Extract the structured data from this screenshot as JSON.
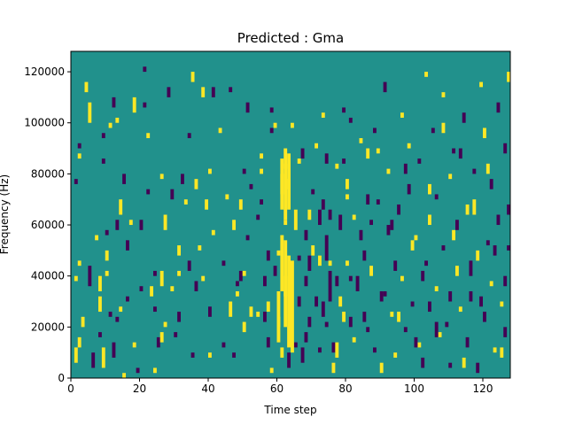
{
  "chart_data": {
    "type": "heatmap",
    "title": "Predicted : Gma",
    "xlabel": "Time step",
    "ylabel": "Frequency (Hz)",
    "xlim": [
      0,
      128
    ],
    "ylim": [
      0,
      128000
    ],
    "x_ticks": [
      0,
      20,
      40,
      60,
      80,
      100,
      120
    ],
    "y_ticks": [
      0,
      20000,
      40000,
      60000,
      80000,
      100000,
      120000
    ],
    "grid": false,
    "legend": "none",
    "colormap": "viridis",
    "values_scale": "ternary: -1 (dark purple), 0 (teal background), 1 (yellow)",
    "colors": {
      "low": "#440154",
      "mid": "#21918c",
      "high": "#fde725"
    },
    "background_value": 0,
    "bin_width_time": 1,
    "bin_height_hz": 2000,
    "cells": [
      [
        1,
        6000,
        12000,
        1
      ],
      [
        2,
        12000,
        16000,
        1
      ],
      [
        3,
        20000,
        24000,
        1
      ],
      [
        1,
        38000,
        40000,
        1
      ],
      [
        2,
        44000,
        46000,
        1
      ],
      [
        2,
        86000,
        88000,
        1
      ],
      [
        1,
        76000,
        78000,
        -1
      ],
      [
        2,
        90000,
        92000,
        -1
      ],
      [
        4,
        112000,
        116000,
        1
      ],
      [
        5,
        100000,
        108000,
        1
      ],
      [
        5,
        36000,
        44000,
        -1
      ],
      [
        6,
        4000,
        10000,
        -1
      ],
      [
        7,
        54000,
        56000,
        1
      ],
      [
        8,
        16000,
        18000,
        -1
      ],
      [
        8,
        26000,
        32000,
        1
      ],
      [
        8,
        34000,
        40000,
        1
      ],
      [
        9,
        94000,
        96000,
        -1
      ],
      [
        9,
        4000,
        12000,
        1
      ],
      [
        9,
        84000,
        86000,
        -1
      ],
      [
        10,
        46000,
        50000,
        1
      ],
      [
        10,
        56000,
        58000,
        -1
      ],
      [
        10,
        40000,
        42000,
        1
      ],
      [
        11,
        98000,
        100000,
        1
      ],
      [
        11,
        24000,
        26000,
        -1
      ],
      [
        12,
        8000,
        14000,
        -1
      ],
      [
        12,
        106000,
        110000,
        -1
      ],
      [
        13,
        58000,
        62000,
        -1
      ],
      [
        13,
        100000,
        102000,
        1
      ],
      [
        13,
        22000,
        24000,
        -1
      ],
      [
        14,
        64000,
        70000,
        1
      ],
      [
        14,
        26000,
        28000,
        1
      ],
      [
        15,
        0,
        2000,
        1
      ],
      [
        15,
        76000,
        80000,
        -1
      ],
      [
        16,
        30000,
        32000,
        -1
      ],
      [
        16,
        50000,
        54000,
        -1
      ],
      [
        17,
        60000,
        62000,
        1
      ],
      [
        18,
        12000,
        14000,
        1
      ],
      [
        18,
        104000,
        110000,
        1
      ],
      [
        19,
        2000,
        4000,
        -1
      ],
      [
        20,
        58000,
        62000,
        -1
      ],
      [
        20,
        34000,
        36000,
        -1
      ],
      [
        21,
        106000,
        108000,
        -1
      ],
      [
        21,
        120000,
        122000,
        -1
      ],
      [
        22,
        72000,
        74000,
        -1
      ],
      [
        22,
        94000,
        96000,
        1
      ],
      [
        23,
        32000,
        36000,
        1
      ],
      [
        24,
        2000,
        4000,
        1
      ],
      [
        24,
        26000,
        28000,
        -1
      ],
      [
        24,
        40000,
        42000,
        -1
      ],
      [
        25,
        12000,
        16000,
        -1
      ],
      [
        26,
        36000,
        42000,
        1
      ],
      [
        26,
        14000,
        18000,
        1
      ],
      [
        26,
        78000,
        80000,
        1
      ],
      [
        27,
        58000,
        64000,
        1
      ],
      [
        27,
        20000,
        22000,
        1
      ],
      [
        28,
        110000,
        114000,
        -1
      ],
      [
        29,
        70000,
        74000,
        -1
      ],
      [
        29,
        34000,
        36000,
        1
      ],
      [
        30,
        16000,
        18000,
        -1
      ],
      [
        31,
        22000,
        26000,
        -1
      ],
      [
        31,
        40000,
        42000,
        1
      ],
      [
        31,
        48000,
        52000,
        1
      ],
      [
        32,
        76000,
        80000,
        -1
      ],
      [
        33,
        68000,
        70000,
        1
      ],
      [
        34,
        42000,
        46000,
        -1
      ],
      [
        34,
        94000,
        96000,
        -1
      ],
      [
        35,
        8000,
        10000,
        -1
      ],
      [
        35,
        116000,
        120000,
        1
      ],
      [
        36,
        74000,
        78000,
        1
      ],
      [
        36,
        34000,
        38000,
        -1
      ],
      [
        37,
        50000,
        52000,
        1
      ],
      [
        38,
        110000,
        114000,
        1
      ],
      [
        38,
        38000,
        40000,
        1
      ],
      [
        39,
        66000,
        70000,
        1
      ],
      [
        40,
        8000,
        10000,
        1
      ],
      [
        40,
        24000,
        28000,
        -1
      ],
      [
        40,
        80000,
        82000,
        1
      ],
      [
        41,
        56000,
        58000,
        1
      ],
      [
        41,
        110000,
        114000,
        -1
      ],
      [
        43,
        96000,
        98000,
        1
      ],
      [
        44,
        12000,
        14000,
        -1
      ],
      [
        44,
        44000,
        46000,
        -1
      ],
      [
        45,
        70000,
        72000,
        1
      ],
      [
        46,
        24000,
        30000,
        1
      ],
      [
        46,
        112000,
        114000,
        -1
      ],
      [
        47,
        58000,
        62000,
        1
      ],
      [
        47,
        8000,
        10000,
        -1
      ],
      [
        48,
        32000,
        34000,
        1
      ],
      [
        48,
        36000,
        38000,
        -1
      ],
      [
        49,
        38000,
        42000,
        -1
      ],
      [
        49,
        66000,
        70000,
        1
      ],
      [
        50,
        40000,
        42000,
        1
      ],
      [
        50,
        18000,
        22000,
        1
      ],
      [
        50,
        80000,
        82000,
        -1
      ],
      [
        51,
        104000,
        108000,
        -1
      ],
      [
        51,
        54000,
        56000,
        -1
      ],
      [
        52,
        74000,
        76000,
        -1
      ],
      [
        52,
        24000,
        28000,
        1
      ],
      [
        54,
        24000,
        26000,
        1
      ],
      [
        54,
        62000,
        64000,
        -1
      ],
      [
        55,
        86000,
        88000,
        1
      ],
      [
        55,
        68000,
        70000,
        -1
      ],
      [
        56,
        36000,
        40000,
        -1
      ],
      [
        57,
        12000,
        16000,
        -1
      ],
      [
        57,
        26000,
        30000,
        1
      ],
      [
        58,
        104000,
        106000,
        -1
      ],
      [
        58,
        2000,
        4000,
        1
      ],
      [
        59,
        40000,
        44000,
        -1
      ],
      [
        59,
        98000,
        100000,
        1
      ],
      [
        60,
        20000,
        24000,
        1
      ],
      [
        60,
        48000,
        50000,
        1
      ],
      [
        61,
        72000,
        80000,
        1
      ],
      [
        61,
        8000,
        12000,
        1
      ],
      [
        62,
        82000,
        84000,
        1
      ],
      [
        62,
        60000,
        62000,
        1
      ],
      [
        62,
        32000,
        40000,
        1
      ],
      [
        63,
        74000,
        78000,
        1
      ],
      [
        63,
        4000,
        10000,
        -1
      ],
      [
        64,
        98000,
        100000,
        1
      ],
      [
        65,
        58000,
        66000,
        1
      ],
      [
        65,
        12000,
        14000,
        -1
      ],
      [
        66,
        84000,
        86000,
        1
      ],
      [
        66,
        46000,
        48000,
        -1
      ],
      [
        67,
        6000,
        12000,
        -1
      ],
      [
        67,
        86000,
        90000,
        -1
      ],
      [
        68,
        14000,
        18000,
        -1
      ],
      [
        68,
        54000,
        58000,
        -1
      ],
      [
        69,
        42000,
        48000,
        -1
      ],
      [
        69,
        62000,
        66000,
        1
      ],
      [
        70,
        72000,
        74000,
        -1
      ],
      [
        71,
        28000,
        32000,
        -1
      ],
      [
        71,
        90000,
        92000,
        1
      ],
      [
        72,
        44000,
        48000,
        1
      ],
      [
        72,
        10000,
        12000,
        -1
      ],
      [
        73,
        102000,
        104000,
        1
      ],
      [
        73,
        66000,
        70000,
        -1
      ],
      [
        74,
        84000,
        88000,
        -1
      ],
      [
        74,
        20000,
        22000,
        -1
      ],
      [
        75,
        44000,
        46000,
        1
      ],
      [
        75,
        62000,
        66000,
        -1
      ],
      [
        76,
        10000,
        14000,
        -1
      ],
      [
        77,
        36000,
        40000,
        -1
      ],
      [
        77,
        82000,
        84000,
        1
      ],
      [
        78,
        28000,
        32000,
        1
      ],
      [
        78,
        58000,
        64000,
        -1
      ],
      [
        79,
        22000,
        26000,
        1
      ],
      [
        79,
        104000,
        106000,
        -1
      ],
      [
        80,
        44000,
        46000,
        1
      ],
      [
        80,
        70000,
        72000,
        1
      ],
      [
        81,
        20000,
        24000,
        -1
      ],
      [
        81,
        38000,
        40000,
        -1
      ],
      [
        82,
        62000,
        64000,
        1
      ],
      [
        82,
        14000,
        16000,
        1
      ],
      [
        84,
        92000,
        94000,
        1
      ],
      [
        84,
        54000,
        58000,
        -1
      ],
      [
        85,
        22000,
        26000,
        -1
      ],
      [
        86,
        86000,
        90000,
        1
      ],
      [
        86,
        18000,
        20000,
        -1
      ],
      [
        87,
        40000,
        44000,
        1
      ],
      [
        87,
        60000,
        62000,
        -1
      ],
      [
        88,
        10000,
        12000,
        -1
      ],
      [
        88,
        96000,
        98000,
        -1
      ],
      [
        89,
        68000,
        70000,
        -1
      ],
      [
        90,
        2000,
        6000,
        1
      ],
      [
        91,
        32000,
        34000,
        -1
      ],
      [
        91,
        112000,
        116000,
        -1
      ],
      [
        92,
        56000,
        60000,
        -1
      ],
      [
        92,
        80000,
        82000,
        1
      ],
      [
        93,
        24000,
        26000,
        1
      ],
      [
        94,
        42000,
        46000,
        -1
      ],
      [
        94,
        8000,
        10000,
        1
      ],
      [
        95,
        64000,
        68000,
        -1
      ],
      [
        96,
        38000,
        40000,
        1
      ],
      [
        96,
        102000,
        104000,
        1
      ],
      [
        97,
        18000,
        20000,
        -1
      ],
      [
        98,
        72000,
        76000,
        -1
      ],
      [
        98,
        90000,
        92000,
        1
      ],
      [
        99,
        28000,
        30000,
        -1
      ],
      [
        100,
        54000,
        56000,
        1
      ],
      [
        101,
        84000,
        86000,
        -1
      ],
      [
        101,
        12000,
        14000,
        1
      ],
      [
        102,
        4000,
        8000,
        -1
      ],
      [
        103,
        44000,
        46000,
        -1
      ],
      [
        103,
        118000,
        120000,
        1
      ],
      [
        104,
        26000,
        30000,
        -1
      ],
      [
        104,
        60000,
        64000,
        1
      ],
      [
        105,
        96000,
        98000,
        -1
      ],
      [
        106,
        34000,
        36000,
        1
      ],
      [
        106,
        70000,
        72000,
        -1
      ],
      [
        107,
        16000,
        18000,
        1
      ],
      [
        108,
        50000,
        52000,
        -1
      ],
      [
        108,
        110000,
        112000,
        1
      ],
      [
        109,
        20000,
        22000,
        -1
      ],
      [
        110,
        78000,
        80000,
        1
      ],
      [
        110,
        4000,
        6000,
        -1
      ],
      [
        111,
        88000,
        90000,
        -1
      ],
      [
        112,
        40000,
        44000,
        1
      ],
      [
        112,
        58000,
        62000,
        -1
      ],
      [
        113,
        26000,
        28000,
        1
      ],
      [
        114,
        100000,
        104000,
        -1
      ],
      [
        115,
        12000,
        16000,
        -1
      ],
      [
        115,
        64000,
        68000,
        1
      ],
      [
        116,
        30000,
        34000,
        -1
      ],
      [
        117,
        80000,
        82000,
        -1
      ],
      [
        118,
        46000,
        50000,
        1
      ],
      [
        118,
        2000,
        6000,
        -1
      ],
      [
        119,
        114000,
        116000,
        1
      ],
      [
        120,
        22000,
        26000,
        -1
      ],
      [
        120,
        94000,
        98000,
        1
      ],
      [
        121,
        52000,
        54000,
        -1
      ],
      [
        122,
        36000,
        38000,
        1
      ],
      [
        122,
        74000,
        78000,
        -1
      ],
      [
        123,
        10000,
        12000,
        1
      ],
      [
        124,
        60000,
        64000,
        -1
      ],
      [
        124,
        104000,
        108000,
        -1
      ],
      [
        125,
        28000,
        30000,
        1
      ],
      [
        126,
        88000,
        92000,
        -1
      ],
      [
        126,
        16000,
        20000,
        -1
      ],
      [
        127,
        50000,
        52000,
        -1
      ],
      [
        127,
        116000,
        120000,
        1
      ],
      [
        127,
        64000,
        68000,
        -1
      ],
      [
        60,
        14000,
        34000,
        1
      ],
      [
        61,
        34000,
        56000,
        1
      ],
      [
        62,
        20000,
        54000,
        1
      ],
      [
        63,
        12000,
        48000,
        1
      ],
      [
        64,
        10000,
        46000,
        1
      ],
      [
        62,
        62000,
        90000,
        1
      ],
      [
        63,
        66000,
        88000,
        1
      ],
      [
        61,
        66000,
        86000,
        1
      ],
      [
        55,
        80000,
        82000,
        1
      ],
      [
        56,
        22000,
        26000,
        -1
      ],
      [
        57,
        46000,
        50000,
        -1
      ],
      [
        58,
        96000,
        98000,
        -1
      ],
      [
        66,
        28000,
        32000,
        -1
      ],
      [
        68,
        36000,
        40000,
        -1
      ],
      [
        72,
        60000,
        66000,
        -1
      ],
      [
        73,
        24000,
        30000,
        -1
      ],
      [
        74,
        46000,
        56000,
        -1
      ],
      [
        75,
        30000,
        42000,
        -1
      ],
      [
        70,
        48000,
        52000,
        1
      ],
      [
        69,
        20000,
        24000,
        -1
      ],
      [
        76,
        2000,
        6000,
        1
      ],
      [
        77,
        8000,
        14000,
        1
      ],
      [
        79,
        84000,
        86000,
        -1
      ],
      [
        80,
        74000,
        78000,
        1
      ],
      [
        81,
        100000,
        102000,
        -1
      ],
      [
        83,
        34000,
        40000,
        -1
      ],
      [
        85,
        46000,
        50000,
        -1
      ],
      [
        86,
        68000,
        72000,
        -1
      ],
      [
        89,
        88000,
        90000,
        1
      ],
      [
        90,
        30000,
        34000,
        -1
      ],
      [
        93,
        58000,
        62000,
        -1
      ],
      [
        95,
        22000,
        26000,
        1
      ],
      [
        97,
        80000,
        84000,
        -1
      ],
      [
        99,
        50000,
        54000,
        1
      ],
      [
        100,
        12000,
        16000,
        -1
      ],
      [
        102,
        38000,
        42000,
        -1
      ],
      [
        104,
        72000,
        76000,
        1
      ],
      [
        106,
        16000,
        22000,
        -1
      ],
      [
        108,
        96000,
        100000,
        1
      ],
      [
        110,
        30000,
        34000,
        -1
      ],
      [
        111,
        54000,
        58000,
        1
      ],
      [
        113,
        86000,
        90000,
        -1
      ],
      [
        114,
        4000,
        8000,
        1
      ],
      [
        116,
        40000,
        46000,
        -1
      ],
      [
        117,
        64000,
        70000,
        1
      ],
      [
        119,
        28000,
        32000,
        -1
      ],
      [
        121,
        80000,
        84000,
        1
      ],
      [
        123,
        48000,
        52000,
        -1
      ],
      [
        125,
        8000,
        12000,
        1
      ],
      [
        126,
        36000,
        40000,
        -1
      ]
    ]
  }
}
